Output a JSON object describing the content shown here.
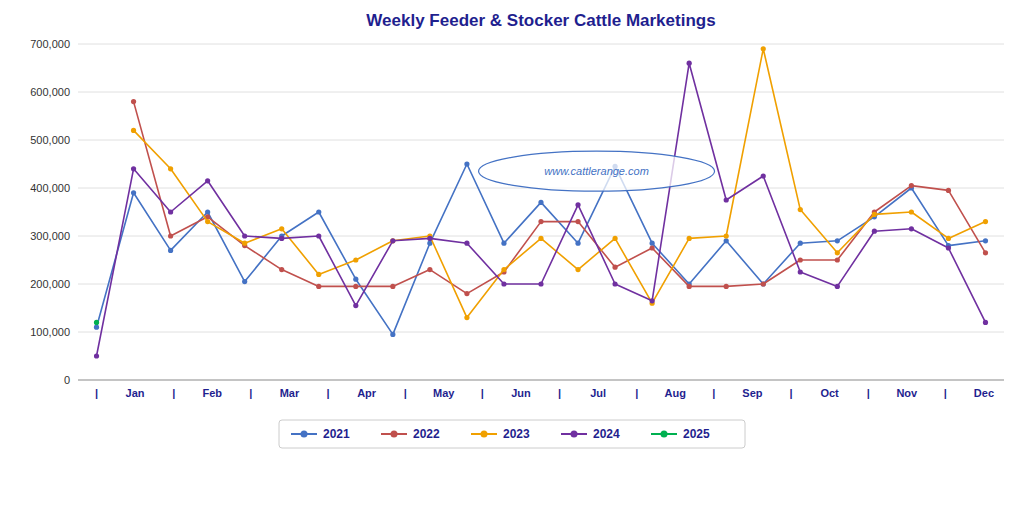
{
  "chart_data": {
    "type": "line",
    "title": "Weekly Feeder & Stocker Cattle Marketings",
    "x": [
      0,
      1,
      2,
      3,
      4,
      5,
      6,
      7,
      8,
      9,
      10,
      11,
      12,
      13,
      14,
      15,
      16,
      17,
      18,
      19,
      20,
      21,
      22,
      23,
      24
    ],
    "xlim": [
      -0.5,
      24.5
    ],
    "xticks": [
      {
        "value": 0,
        "label": "|"
      },
      {
        "value": 1.0416666666666667,
        "label": "Jan"
      },
      {
        "value": 2.0833333333333335,
        "label": "|"
      },
      {
        "value": 3.125,
        "label": "Feb"
      },
      {
        "value": 4.166666666666667,
        "label": "|"
      },
      {
        "value": 5.208333333333333,
        "label": "Mar"
      },
      {
        "value": 6.25,
        "label": "|"
      },
      {
        "value": 7.291666666666667,
        "label": "Apr"
      },
      {
        "value": 8.333333333333334,
        "label": "|"
      },
      {
        "value": 9.375,
        "label": "May"
      },
      {
        "value": 10.416666666666668,
        "label": "|"
      },
      {
        "value": 11.458333333333334,
        "label": "Jun"
      },
      {
        "value": 12.5,
        "label": "|"
      },
      {
        "value": 13.541666666666666,
        "label": "Jul"
      },
      {
        "value": 14.583333333333334,
        "label": "|"
      },
      {
        "value": 15.625,
        "label": "Aug"
      },
      {
        "value": 16.666666666666668,
        "label": "|"
      },
      {
        "value": 17.708333333333332,
        "label": "Sep"
      },
      {
        "value": 18.75,
        "label": "|"
      },
      {
        "value": 19.791666666666668,
        "label": "Oct"
      },
      {
        "value": 20.833333333333336,
        "label": "|"
      },
      {
        "value": 21.875,
        "label": "Nov"
      },
      {
        "value": 22.916666666666668,
        "label": "|"
      },
      {
        "value": 23.958333333333332,
        "label": "Dec"
      }
    ],
    "ylim": [
      0,
      700000
    ],
    "yticks": [
      0,
      {
        "value": 100000,
        "label": "100,000"
      },
      {
        "value": 200000,
        "label": "200,000"
      },
      {
        "value": 300000,
        "label": "300,000"
      },
      {
        "value": 400000,
        "label": "400,000"
      },
      {
        "value": 500000,
        "label": "500,000"
      },
      {
        "value": 600000,
        "label": "600,000"
      },
      {
        "value": 700000,
        "label": "700,000"
      }
    ],
    "grid": true,
    "legend": "bottom",
    "marker": "circle",
    "annotations": [
      {
        "text": "www.cattlerange.com",
        "x": 13.5,
        "y": 435000
      }
    ],
    "series": [
      {
        "name": "2021",
        "color": "#4472c4",
        "values": [
          110000,
          390000,
          270000,
          350000,
          205000,
          300000,
          350000,
          210000,
          95000,
          285000,
          450000,
          285000,
          370000,
          285000,
          445000,
          285000,
          200000,
          290000,
          200000,
          285000,
          290000,
          340000,
          400000,
          280000,
          290000
        ]
      },
      {
        "name": "2022",
        "color": "#c0504d",
        "values": [
          null,
          580000,
          300000,
          340000,
          280000,
          230000,
          195000,
          195000,
          195000,
          230000,
          180000,
          225000,
          330000,
          330000,
          235000,
          275000,
          195000,
          195000,
          200000,
          250000,
          250000,
          350000,
          405000,
          395000,
          265000
        ]
      },
      {
        "name": "2023",
        "color": "#f0a000",
        "values": [
          null,
          520000,
          440000,
          330000,
          285000,
          315000,
          220000,
          250000,
          290000,
          300000,
          130000,
          230000,
          295000,
          230000,
          295000,
          160000,
          295000,
          300000,
          690000,
          355000,
          265000,
          345000,
          350000,
          295000,
          330000
        ]
      },
      {
        "name": "2024",
        "color": "#7030a0",
        "values": [
          50000,
          440000,
          350000,
          415000,
          300000,
          295000,
          300000,
          155000,
          290000,
          295000,
          285000,
          200000,
          200000,
          365000,
          200000,
          165000,
          660000,
          375000,
          425000,
          225000,
          195000,
          310000,
          315000,
          275000,
          120000
        ]
      },
      {
        "name": "2025",
        "color": "#00b050",
        "values": [
          120000,
          null,
          null,
          null,
          null,
          null,
          null,
          null,
          null,
          null,
          null,
          null,
          null,
          null,
          null,
          null,
          null,
          null,
          null,
          null,
          null,
          null,
          null,
          null,
          null
        ]
      }
    ]
  }
}
